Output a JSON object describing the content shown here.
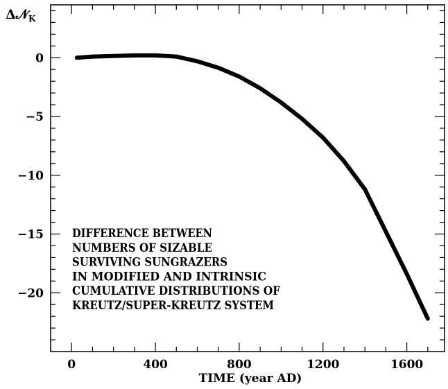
{
  "chart_data": {
    "type": "line",
    "title": "",
    "xlabel": "TIME (year AD)",
    "ylabel": "ΔN_K",
    "ylabel_main": "Δ𝒩",
    "ylabel_sub": "K",
    "xlim": [
      -100,
      1780
    ],
    "ylim": [
      -25,
      4.5
    ],
    "xticks": [
      0,
      400,
      800,
      1200,
      1600
    ],
    "xtick_labels": [
      "0",
      "400",
      "800",
      "1200",
      "1600"
    ],
    "yticks": [
      0,
      -5,
      -10,
      -15,
      -20
    ],
    "ytick_labels": [
      "0",
      "−5",
      "−10",
      "−15",
      "−20"
    ],
    "grid": false,
    "annotation_lines": [
      "DIFFERENCE BETWEEN",
      "NUMBERS OF SIZABLE",
      "SURVIVING SUNGRAZERS",
      "IN MODIFIED AND INTRINSIC",
      "CUMULATIVE DISTRIBUTIONS OF",
      "KREUTZ/SUPER-KREUTZ SYSTEM"
    ],
    "series": [
      {
        "color": "#000000",
        "x": [
          25,
          100,
          200,
          300,
          400,
          500,
          600,
          700,
          800,
          900,
          1000,
          1100,
          1200,
          1300,
          1400,
          1500,
          1600,
          1700
        ],
        "y": [
          0.0,
          0.1,
          0.15,
          0.2,
          0.2,
          0.1,
          -0.3,
          -0.85,
          -1.6,
          -2.6,
          -3.8,
          -5.2,
          -6.8,
          -8.8,
          -11.2,
          -14.8,
          -18.4,
          -22.2
        ]
      }
    ]
  }
}
